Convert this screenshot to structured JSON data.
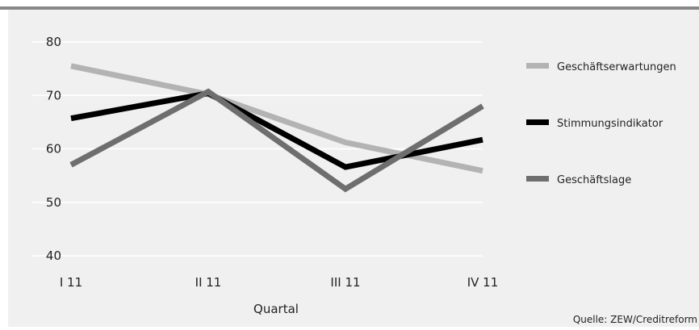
{
  "colors": {
    "background": "#f0f0f0",
    "top_rule": "#888888",
    "grid": "#ffffff",
    "text": "#222222"
  },
  "chart_data": {
    "type": "line",
    "title": "",
    "xlabel": "Quartal",
    "ylabel": "",
    "categories": [
      "I 11",
      "II 11",
      "III 11",
      "IV 11"
    ],
    "ylim": [
      40,
      80
    ],
    "yticks": [
      40,
      50,
      60,
      70,
      80
    ],
    "grid": true,
    "legend_position": "right",
    "series": [
      {
        "name": "Geschäftserwartungen",
        "values": [
          75.5,
          70.2,
          61.2,
          55.9
        ],
        "color": "#b3b3b3"
      },
      {
        "name": "Stimmungsindikator",
        "values": [
          65.7,
          70.4,
          56.6,
          61.7
        ],
        "color": "#000000"
      },
      {
        "name": "Geschäftslage",
        "values": [
          57.0,
          70.7,
          52.5,
          68.0
        ],
        "color": "#6e6e6e"
      }
    ],
    "source": "Quelle: ZEW/Creditreform"
  }
}
